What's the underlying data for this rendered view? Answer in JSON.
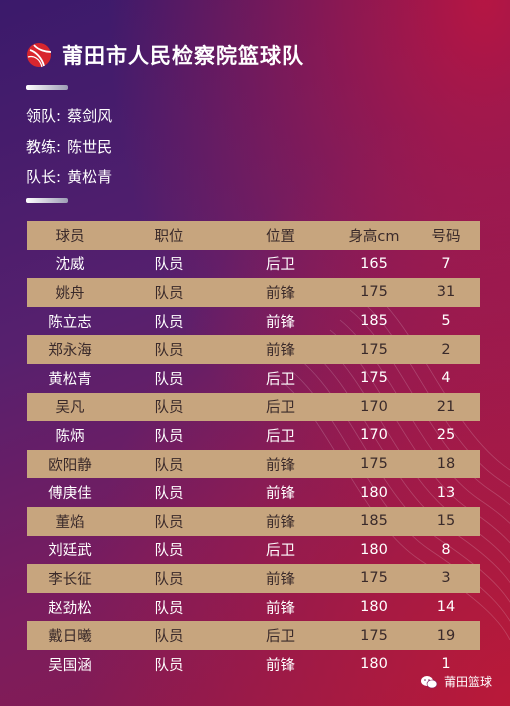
{
  "title": "莆田市人民检察院篮球队",
  "staff": [
    {
      "label": "领队:",
      "value": "蔡剑风"
    },
    {
      "label": "教练:",
      "value": "陈世民"
    },
    {
      "label": "队长:",
      "value": "黄松青"
    }
  ],
  "table": {
    "headers": [
      "球员",
      "职位",
      "位置",
      "身高cm",
      "号码"
    ],
    "rows": [
      [
        "沈威",
        "队员",
        "后卫",
        "165",
        "7"
      ],
      [
        "姚舟",
        "队员",
        "前锋",
        "175",
        "31"
      ],
      [
        "陈立志",
        "队员",
        "前锋",
        "185",
        "5"
      ],
      [
        "郑永海",
        "队员",
        "前锋",
        "175",
        "2"
      ],
      [
        "黄松青",
        "队员",
        "后卫",
        "175",
        "4"
      ],
      [
        "吴凡",
        "队员",
        "后卫",
        "170",
        "21"
      ],
      [
        "陈炳",
        "队员",
        "后卫",
        "170",
        "25"
      ],
      [
        "欧阳静",
        "队员",
        "前锋",
        "175",
        "18"
      ],
      [
        "傅庚佳",
        "队员",
        "前锋",
        "180",
        "13"
      ],
      [
        "董焰",
        "队员",
        "前锋",
        "185",
        "15"
      ],
      [
        "刘廷武",
        "队员",
        "后卫",
        "180",
        "8"
      ],
      [
        "李长征",
        "队员",
        "前锋",
        "175",
        "3"
      ],
      [
        "赵劲松",
        "队员",
        "前锋",
        "180",
        "14"
      ],
      [
        "戴日曦",
        "队员",
        "后卫",
        "175",
        "19"
      ],
      [
        "吴国涵",
        "队员",
        "前锋",
        "180",
        "1"
      ]
    ]
  },
  "footer": {
    "brand": "莆田篮球"
  },
  "colors": {
    "band": "#c7a57e",
    "logo": "#d8262e"
  },
  "icons": {
    "logo": "basketball-logo-icon",
    "footer": "wechat-icon"
  }
}
